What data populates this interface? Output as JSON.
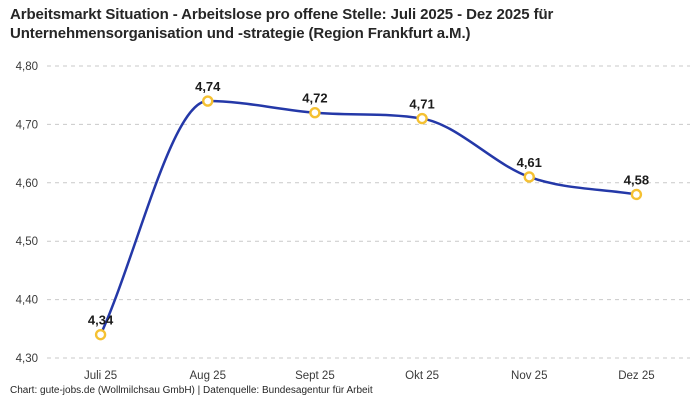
{
  "header": {
    "title": "Arbeitsmarkt Situation - Arbeitslose pro offene Stelle: Juli 2025 - Dez 2025 für\nUnternehmensorganisation und -strategie (Region Frankfurt a.M.)"
  },
  "chart_data": {
    "type": "line",
    "title": "Arbeitsmarkt Situation - Arbeitslose pro offene Stelle: Juli 2025 - Dez 2025 für Unternehmensorganisation und -strategie (Region Frankfurt a.M.)",
    "categories": [
      "Juli 25",
      "Aug 25",
      "Sept 25",
      "Okt 25",
      "Nov 25",
      "Dez 25"
    ],
    "values": [
      4.34,
      4.74,
      4.72,
      4.71,
      4.61,
      4.58
    ],
    "value_labels": [
      "4,34",
      "4,74",
      "4,72",
      "4,71",
      "4,61",
      "4,58"
    ],
    "ylim": [
      4.3,
      4.8
    ],
    "yticks": [
      4.3,
      4.4,
      4.5,
      4.6,
      4.7,
      4.8
    ],
    "ytick_labels": [
      "4,30",
      "4,40",
      "4,50",
      "4,60",
      "4,70",
      "4,80"
    ],
    "xlabel": "",
    "ylabel": "",
    "grid": "horizontal-dashed",
    "legend": "none",
    "colors": {
      "line": "#2438a8",
      "marker_ring": "#f5c132",
      "marker_fill": "#ffffff",
      "gridline": "#c9c9c9",
      "title_text": "#262626",
      "tick_text": "#3a3a3a",
      "data_label_text": "#1c1c1c"
    }
  },
  "footer": {
    "text": "Chart: gute-jobs.de (Wollmilchsau GmbH) | Datenquelle: Bundesagentur für Arbeit"
  }
}
